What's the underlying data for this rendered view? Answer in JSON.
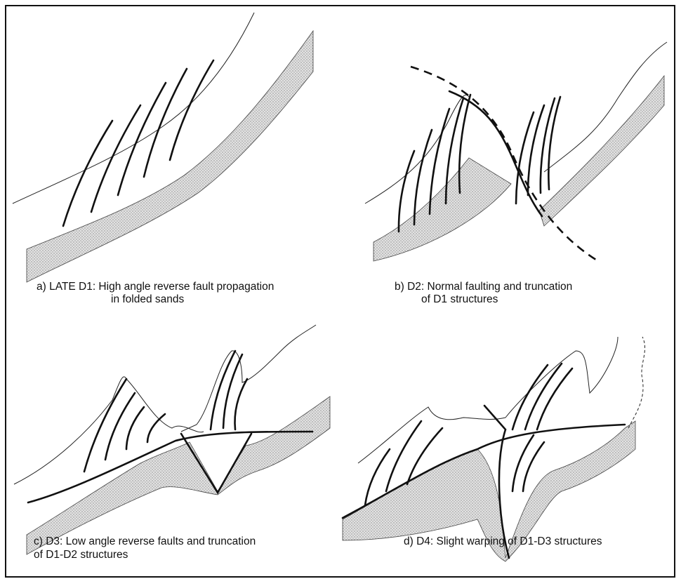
{
  "panels": [
    {
      "caption": [
        "a) LATE D1: High angle reverse fault propagation",
        "in folded sands"
      ]
    },
    {
      "caption": [
        "b) D2: Normal faulting and truncation",
        "of D1 structures"
      ]
    },
    {
      "caption": [
        "c) D3: Low angle reverse faults and truncation",
        "of D1-D2 structures"
      ]
    },
    {
      "caption": [
        "d) D4: Slight warping of D1-D3 structures"
      ]
    }
  ]
}
